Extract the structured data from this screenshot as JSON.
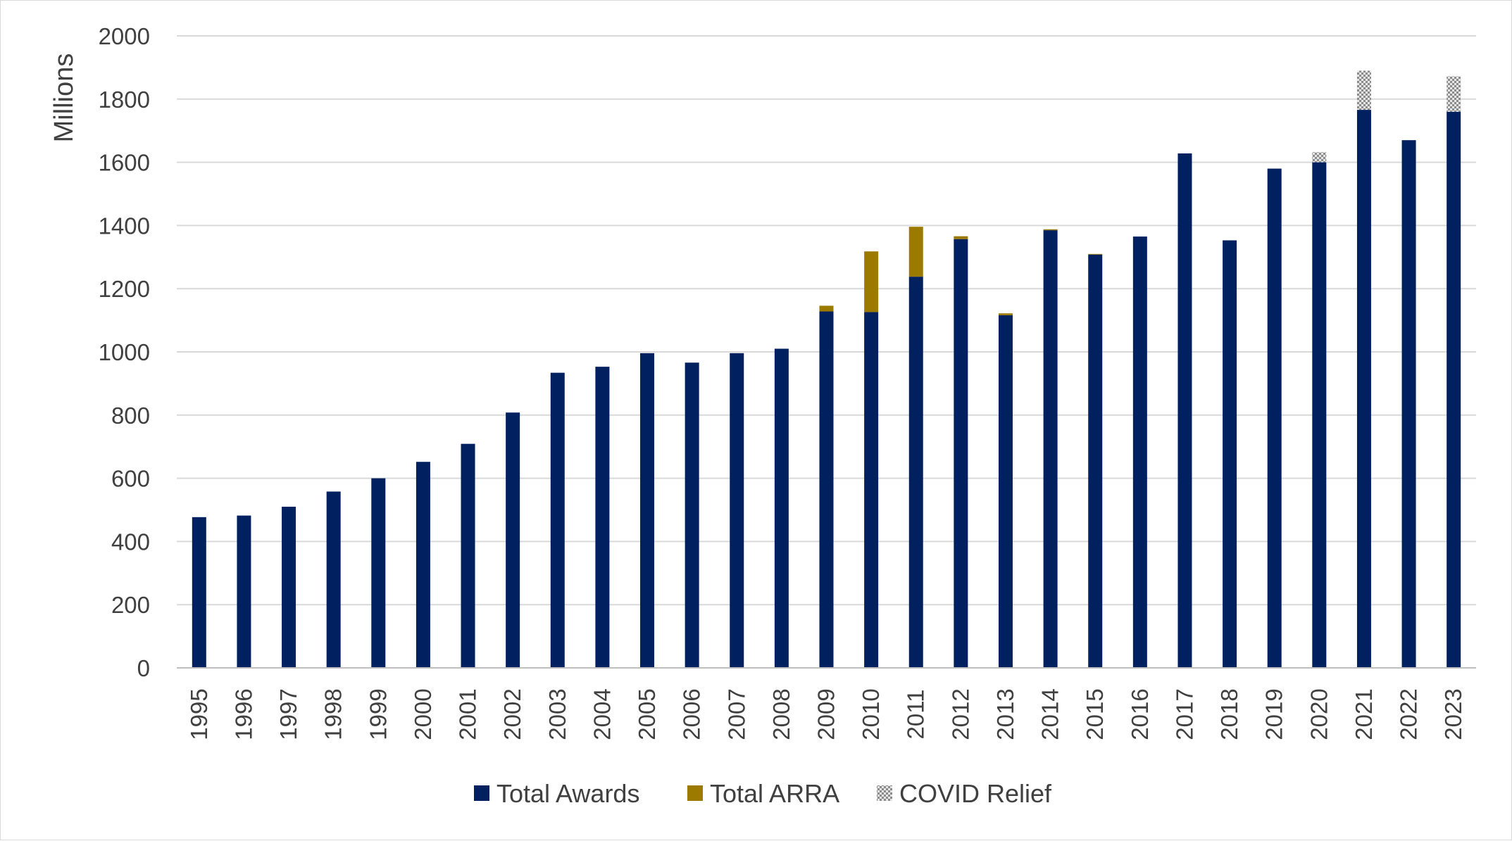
{
  "chart_data": {
    "type": "bar",
    "stacked": true,
    "ylabel": "Millions",
    "xlabel": "",
    "title": "",
    "ylim": [
      0,
      2000
    ],
    "yticks": [
      0,
      200,
      400,
      600,
      800,
      1000,
      1200,
      1400,
      1600,
      1800,
      2000
    ],
    "grid": true,
    "legend_position": "bottom",
    "categories": [
      "1995",
      "1996",
      "1997",
      "1998",
      "1999",
      "2000",
      "2001",
      "2002",
      "2003",
      "2004",
      "2005",
      "2006",
      "2007",
      "2008",
      "2009",
      "2010",
      "2011",
      "2012",
      "2013",
      "2014",
      "2015",
      "2016",
      "2017",
      "2018",
      "2019",
      "2020",
      "2021",
      "2022",
      "2023"
    ],
    "series": [
      {
        "name": "Total Awards",
        "color": "#002060",
        "pattern": "solid",
        "values": [
          477,
          482,
          510,
          558,
          600,
          652,
          709,
          808,
          934,
          953,
          996,
          966,
          996,
          1010,
          1128,
          1126,
          1238,
          1357,
          1116,
          1385,
          1308,
          1365,
          1628,
          1353,
          1580,
          1600,
          1766,
          1670,
          1760
        ]
      },
      {
        "name": "Total ARRA",
        "color": "#9c7a00",
        "pattern": "solid",
        "values": [
          0,
          0,
          0,
          0,
          0,
          0,
          0,
          0,
          0,
          0,
          0,
          0,
          0,
          0,
          18,
          192,
          158,
          9,
          6,
          3,
          2,
          0,
          0,
          0,
          0,
          0,
          0,
          0,
          0
        ]
      },
      {
        "name": "COVID Relief",
        "color": "#a6a6a6",
        "pattern": "checker",
        "values": [
          0,
          0,
          0,
          0,
          0,
          0,
          0,
          0,
          0,
          0,
          0,
          0,
          0,
          0,
          0,
          0,
          0,
          0,
          0,
          0,
          0,
          0,
          0,
          0,
          0,
          32,
          124,
          0,
          112
        ]
      }
    ]
  }
}
